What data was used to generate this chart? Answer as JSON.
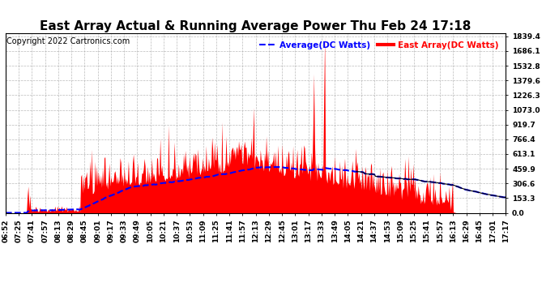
{
  "title": "East Array Actual & Running Average Power Thu Feb 24 17:18",
  "copyright": "Copyright 2022 Cartronics.com",
  "legend_avg": "Average(DC Watts)",
  "legend_east": "East Array(DC Watts)",
  "legend_avg_color": "blue",
  "legend_east_color": "red",
  "yticks": [
    0.0,
    153.3,
    306.6,
    459.9,
    613.1,
    766.4,
    919.7,
    1073.0,
    1226.3,
    1379.6,
    1532.8,
    1686.1,
    1839.4
  ],
  "ymax": 1839.4,
  "ymin": 0.0,
  "background_color": "#ffffff",
  "plot_bg_color": "#ffffff",
  "grid_color": "#aaaaaa",
  "title_fontsize": 11,
  "copyright_fontsize": 7,
  "tick_fontsize": 6.5,
  "n_points": 600,
  "xtick_labels": [
    "06:52",
    "07:25",
    "07:41",
    "07:57",
    "08:13",
    "08:29",
    "08:45",
    "09:01",
    "09:17",
    "09:33",
    "09:49",
    "10:05",
    "10:21",
    "10:37",
    "10:53",
    "11:09",
    "11:25",
    "11:41",
    "11:57",
    "12:13",
    "12:29",
    "12:45",
    "13:01",
    "13:17",
    "13:33",
    "13:49",
    "14:05",
    "14:21",
    "14:37",
    "14:53",
    "15:09",
    "15:25",
    "15:41",
    "15:57",
    "16:13",
    "16:29",
    "16:45",
    "17:01",
    "17:17"
  ]
}
